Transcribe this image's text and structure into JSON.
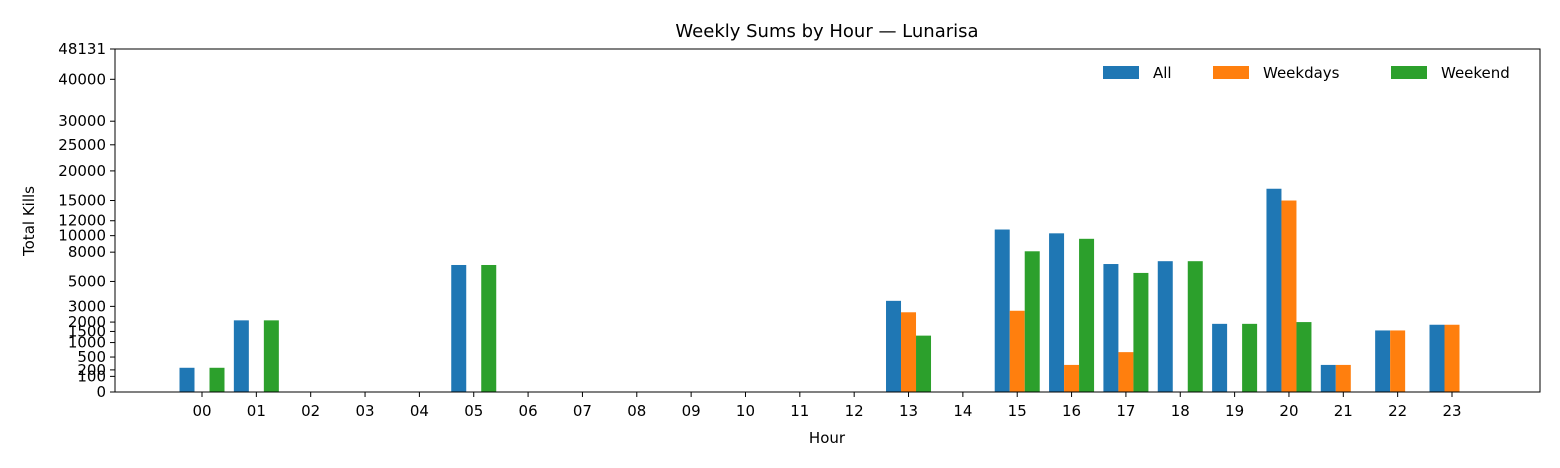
{
  "chart_data": {
    "type": "bar",
    "title": "Weekly Sums by Hour — Lunarisa",
    "xlabel": "Hour",
    "ylabel": "Total Kills",
    "y_scale": "sqrt",
    "ylim": [
      0,
      48131
    ],
    "yticks": [
      0,
      100,
      200,
      500,
      1000,
      1500,
      2000,
      3000,
      5000,
      8000,
      10000,
      12000,
      15000,
      20000,
      25000,
      30000,
      40000,
      48131
    ],
    "ytick_labels": [
      "0",
      "100",
      "200",
      "500",
      "1000",
      "1500",
      "2000",
      "3000",
      "5000",
      "8000",
      "10000",
      "12000",
      "15000",
      "20000",
      "25000",
      "30000",
      "40000",
      "48131"
    ],
    "categories": [
      "00",
      "01",
      "02",
      "03",
      "04",
      "05",
      "06",
      "07",
      "08",
      "09",
      "10",
      "11",
      "12",
      "13",
      "14",
      "15",
      "16",
      "17",
      "18",
      "19",
      "20",
      "21",
      "22",
      "23"
    ],
    "series": [
      {
        "name": "All",
        "color": "#1f77b4",
        "values": [
          240,
          2100,
          0,
          0,
          0,
          6600,
          0,
          0,
          0,
          0,
          0,
          0,
          0,
          3400,
          0,
          10800,
          10300,
          6700,
          7000,
          1900,
          16900,
          300,
          1550,
          1850
        ]
      },
      {
        "name": "Weekdays",
        "color": "#ff7f0e",
        "values": [
          0,
          0,
          0,
          0,
          0,
          0,
          0,
          0,
          0,
          0,
          0,
          0,
          0,
          2600,
          0,
          2700,
          300,
          650,
          0,
          0,
          15000,
          300,
          1550,
          1850
        ]
      },
      {
        "name": "Weekend",
        "color": "#2ca02c",
        "values": [
          240,
          2100,
          0,
          0,
          0,
          6600,
          0,
          0,
          0,
          0,
          0,
          0,
          0,
          1300,
          0,
          8100,
          9600,
          5800,
          7000,
          1900,
          2000,
          0,
          0,
          0
        ]
      }
    ],
    "legend": {
      "position": "top-right",
      "entries": [
        "All",
        "Weekdays",
        "Weekend"
      ]
    },
    "grid": false
  }
}
